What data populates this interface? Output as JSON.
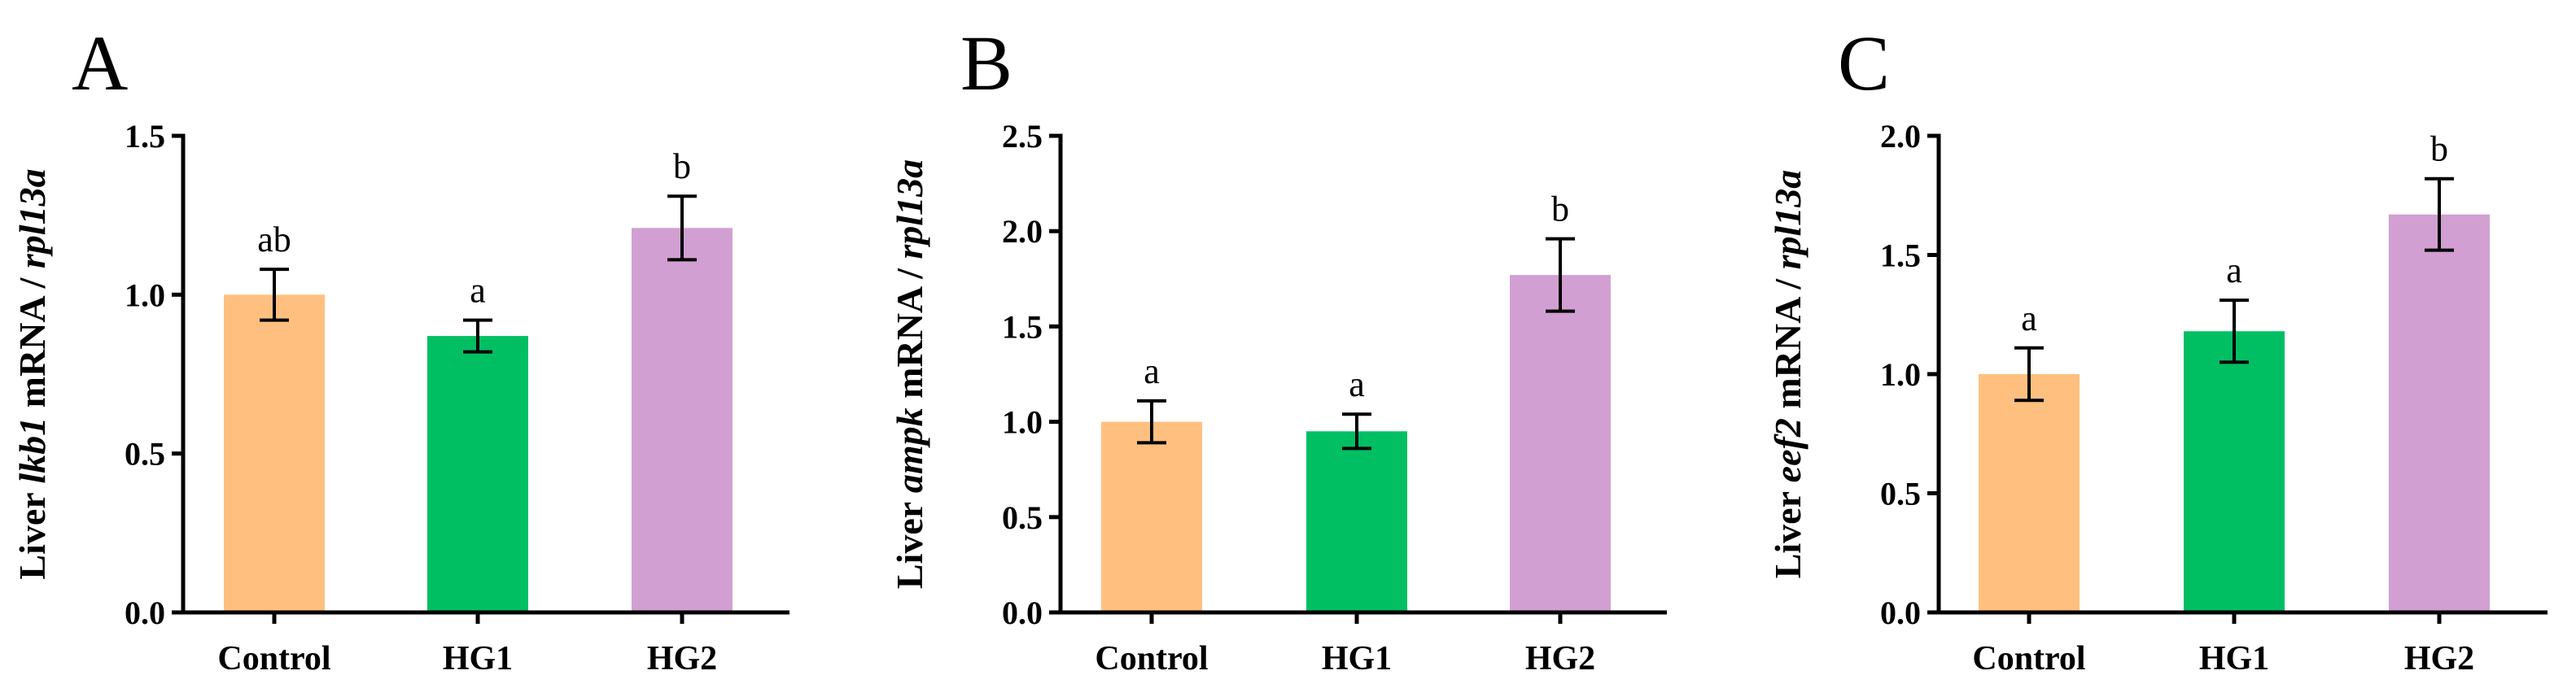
{
  "colors": {
    "control": "#FFC07F",
    "hg1": "#00BF63",
    "hg2": "#D29FD2",
    "axis": "#000000"
  },
  "chart_data": [
    {
      "panel": "A",
      "type": "bar",
      "ylabel_prefix": "Liver ",
      "ylabel_gene": "lkb1",
      "ylabel_mid": " mRNA / ",
      "ylabel_ref": "rpl13a",
      "categories": [
        "Control",
        "HG1",
        "HG2"
      ],
      "values": [
        1.0,
        0.87,
        1.21
      ],
      "errors": [
        0.08,
        0.05,
        0.1
      ],
      "significance": [
        "ab",
        "a",
        "b"
      ],
      "ylim": [
        0,
        1.5
      ],
      "yticks": [
        0.0,
        0.5,
        1.0,
        1.5
      ],
      "ytick_labels": [
        "0.0",
        "0.5",
        "1.0",
        "1.5"
      ]
    },
    {
      "panel": "B",
      "type": "bar",
      "ylabel_prefix": "Liver ",
      "ylabel_gene": "ampk",
      "ylabel_mid": " mRNA / ",
      "ylabel_ref": "rpl13a",
      "categories": [
        "Control",
        "HG1",
        "HG2"
      ],
      "values": [
        1.0,
        0.95,
        1.77
      ],
      "errors": [
        0.11,
        0.09,
        0.19
      ],
      "significance": [
        "a",
        "a",
        "b"
      ],
      "ylim": [
        0,
        2.5
      ],
      "yticks": [
        0.0,
        0.5,
        1.0,
        1.5,
        2.0,
        2.5
      ],
      "ytick_labels": [
        "0.0",
        "0.5",
        "1.0",
        "1.5",
        "2.0",
        "2.5"
      ]
    },
    {
      "panel": "C",
      "type": "bar",
      "ylabel_prefix": "Liver ",
      "ylabel_gene": "eef2",
      "ylabel_mid": " mRNA / ",
      "ylabel_ref": "rpl13a",
      "categories": [
        "Control",
        "HG1",
        "HG2"
      ],
      "values": [
        1.0,
        1.18,
        1.67
      ],
      "errors": [
        0.11,
        0.13,
        0.15
      ],
      "significance": [
        "a",
        "a",
        "b"
      ],
      "ylim": [
        0,
        2.0
      ],
      "yticks": [
        0.0,
        0.5,
        1.0,
        1.5,
        2.0
      ],
      "ytick_labels": [
        "0.0",
        "0.5",
        "1.0",
        "1.5",
        "2.0"
      ]
    }
  ]
}
